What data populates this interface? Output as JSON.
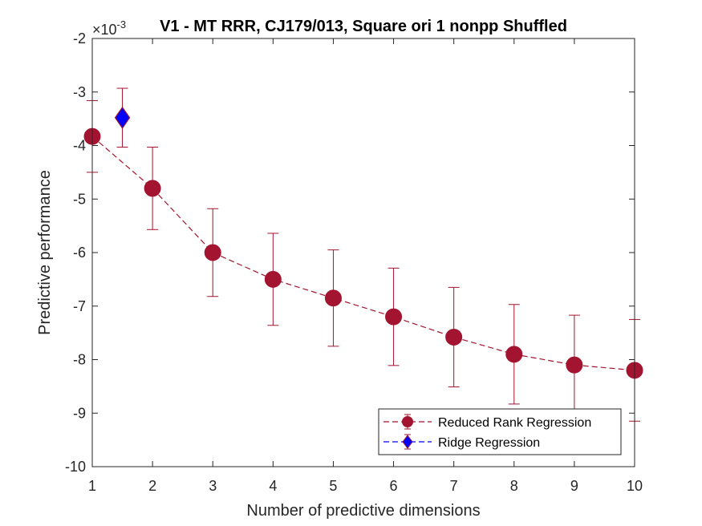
{
  "chart_data": {
    "type": "line",
    "title": "V1 - MT RRR, CJ179/013, Square ori 1 nonpp Shuffled",
    "xlabel": "Number of predictive dimensions",
    "ylabel": "Predictive performance",
    "y_exponent": "×10",
    "y_exponent_power": "-3",
    "xlim": [
      1,
      10
    ],
    "ylim": [
      -10,
      -2
    ],
    "xticks": [
      "1",
      "2",
      "3",
      "4",
      "5",
      "6",
      "7",
      "8",
      "9",
      "10"
    ],
    "yticks": [
      "-2",
      "-3",
      "-4",
      "-5",
      "-6",
      "-7",
      "-8",
      "-9",
      "-10"
    ],
    "grid": false,
    "legend_position": "bottom-right",
    "series": [
      {
        "name": "Reduced Rank Regression",
        "color": "#A2142F",
        "line_style": "dashed",
        "marker": "circle",
        "x": [
          1,
          2,
          3,
          4,
          5,
          6,
          7,
          8,
          9,
          10
        ],
        "y": [
          -3.83,
          -4.8,
          -6.0,
          -6.5,
          -6.85,
          -7.2,
          -7.58,
          -7.9,
          -8.1,
          -8.2
        ],
        "err": [
          0.67,
          0.77,
          0.82,
          0.86,
          0.9,
          0.91,
          0.93,
          0.93,
          0.93,
          0.95
        ]
      },
      {
        "name": "Ridge Regression",
        "color": "#0000FF",
        "edge_color": "#A2142F",
        "line_style": "dashed",
        "marker": "diamond",
        "x": [
          1.5
        ],
        "y": [
          -3.48
        ],
        "err": [
          0.55
        ]
      }
    ]
  }
}
